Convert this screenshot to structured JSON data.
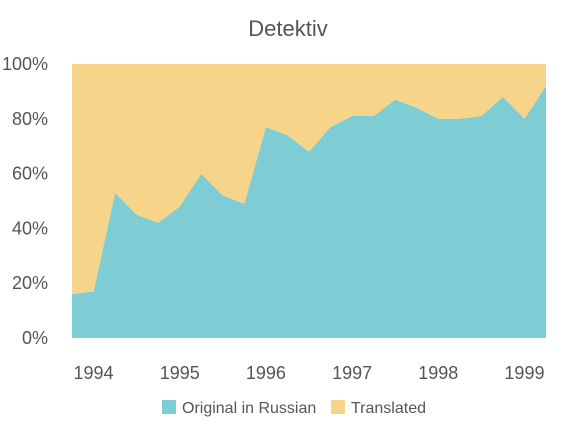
{
  "chart_data": {
    "type": "area",
    "stacked": true,
    "normalized": true,
    "title": "Detektiv",
    "xlabel": "",
    "ylabel": "",
    "x_ticks": [
      "1994",
      "1995",
      "1996",
      "1997",
      "1998",
      "1999"
    ],
    "y_ticks": [
      "0%",
      "20%",
      "40%",
      "60%",
      "80%",
      "100%"
    ],
    "ylim": [
      0,
      100
    ],
    "xlim": [
      1993.75,
      1999.25
    ],
    "x": [
      1993.75,
      1994.0,
      1994.25,
      1994.5,
      1994.75,
      1995.0,
      1995.25,
      1995.5,
      1995.75,
      1996.0,
      1996.25,
      1996.5,
      1996.75,
      1997.0,
      1997.25,
      1997.5,
      1997.75,
      1998.0,
      1998.25,
      1998.5,
      1998.75,
      1999.0,
      1999.25
    ],
    "series": [
      {
        "name": "Original in Russian",
        "color": "#7ecdd4",
        "values": [
          16,
          17,
          53,
          45,
          42,
          48,
          60,
          52,
          49,
          77,
          74,
          68,
          77,
          81,
          81,
          87,
          84,
          80,
          80,
          81,
          88,
          80,
          92
        ]
      },
      {
        "name": "Translated",
        "color": "#f6d58a",
        "values": [
          84,
          83,
          47,
          55,
          58,
          52,
          40,
          48,
          51,
          23,
          26,
          32,
          23,
          19,
          19,
          13,
          16,
          20,
          20,
          19,
          12,
          20,
          8
        ]
      }
    ],
    "grid": false,
    "legend_position": "bottom"
  }
}
